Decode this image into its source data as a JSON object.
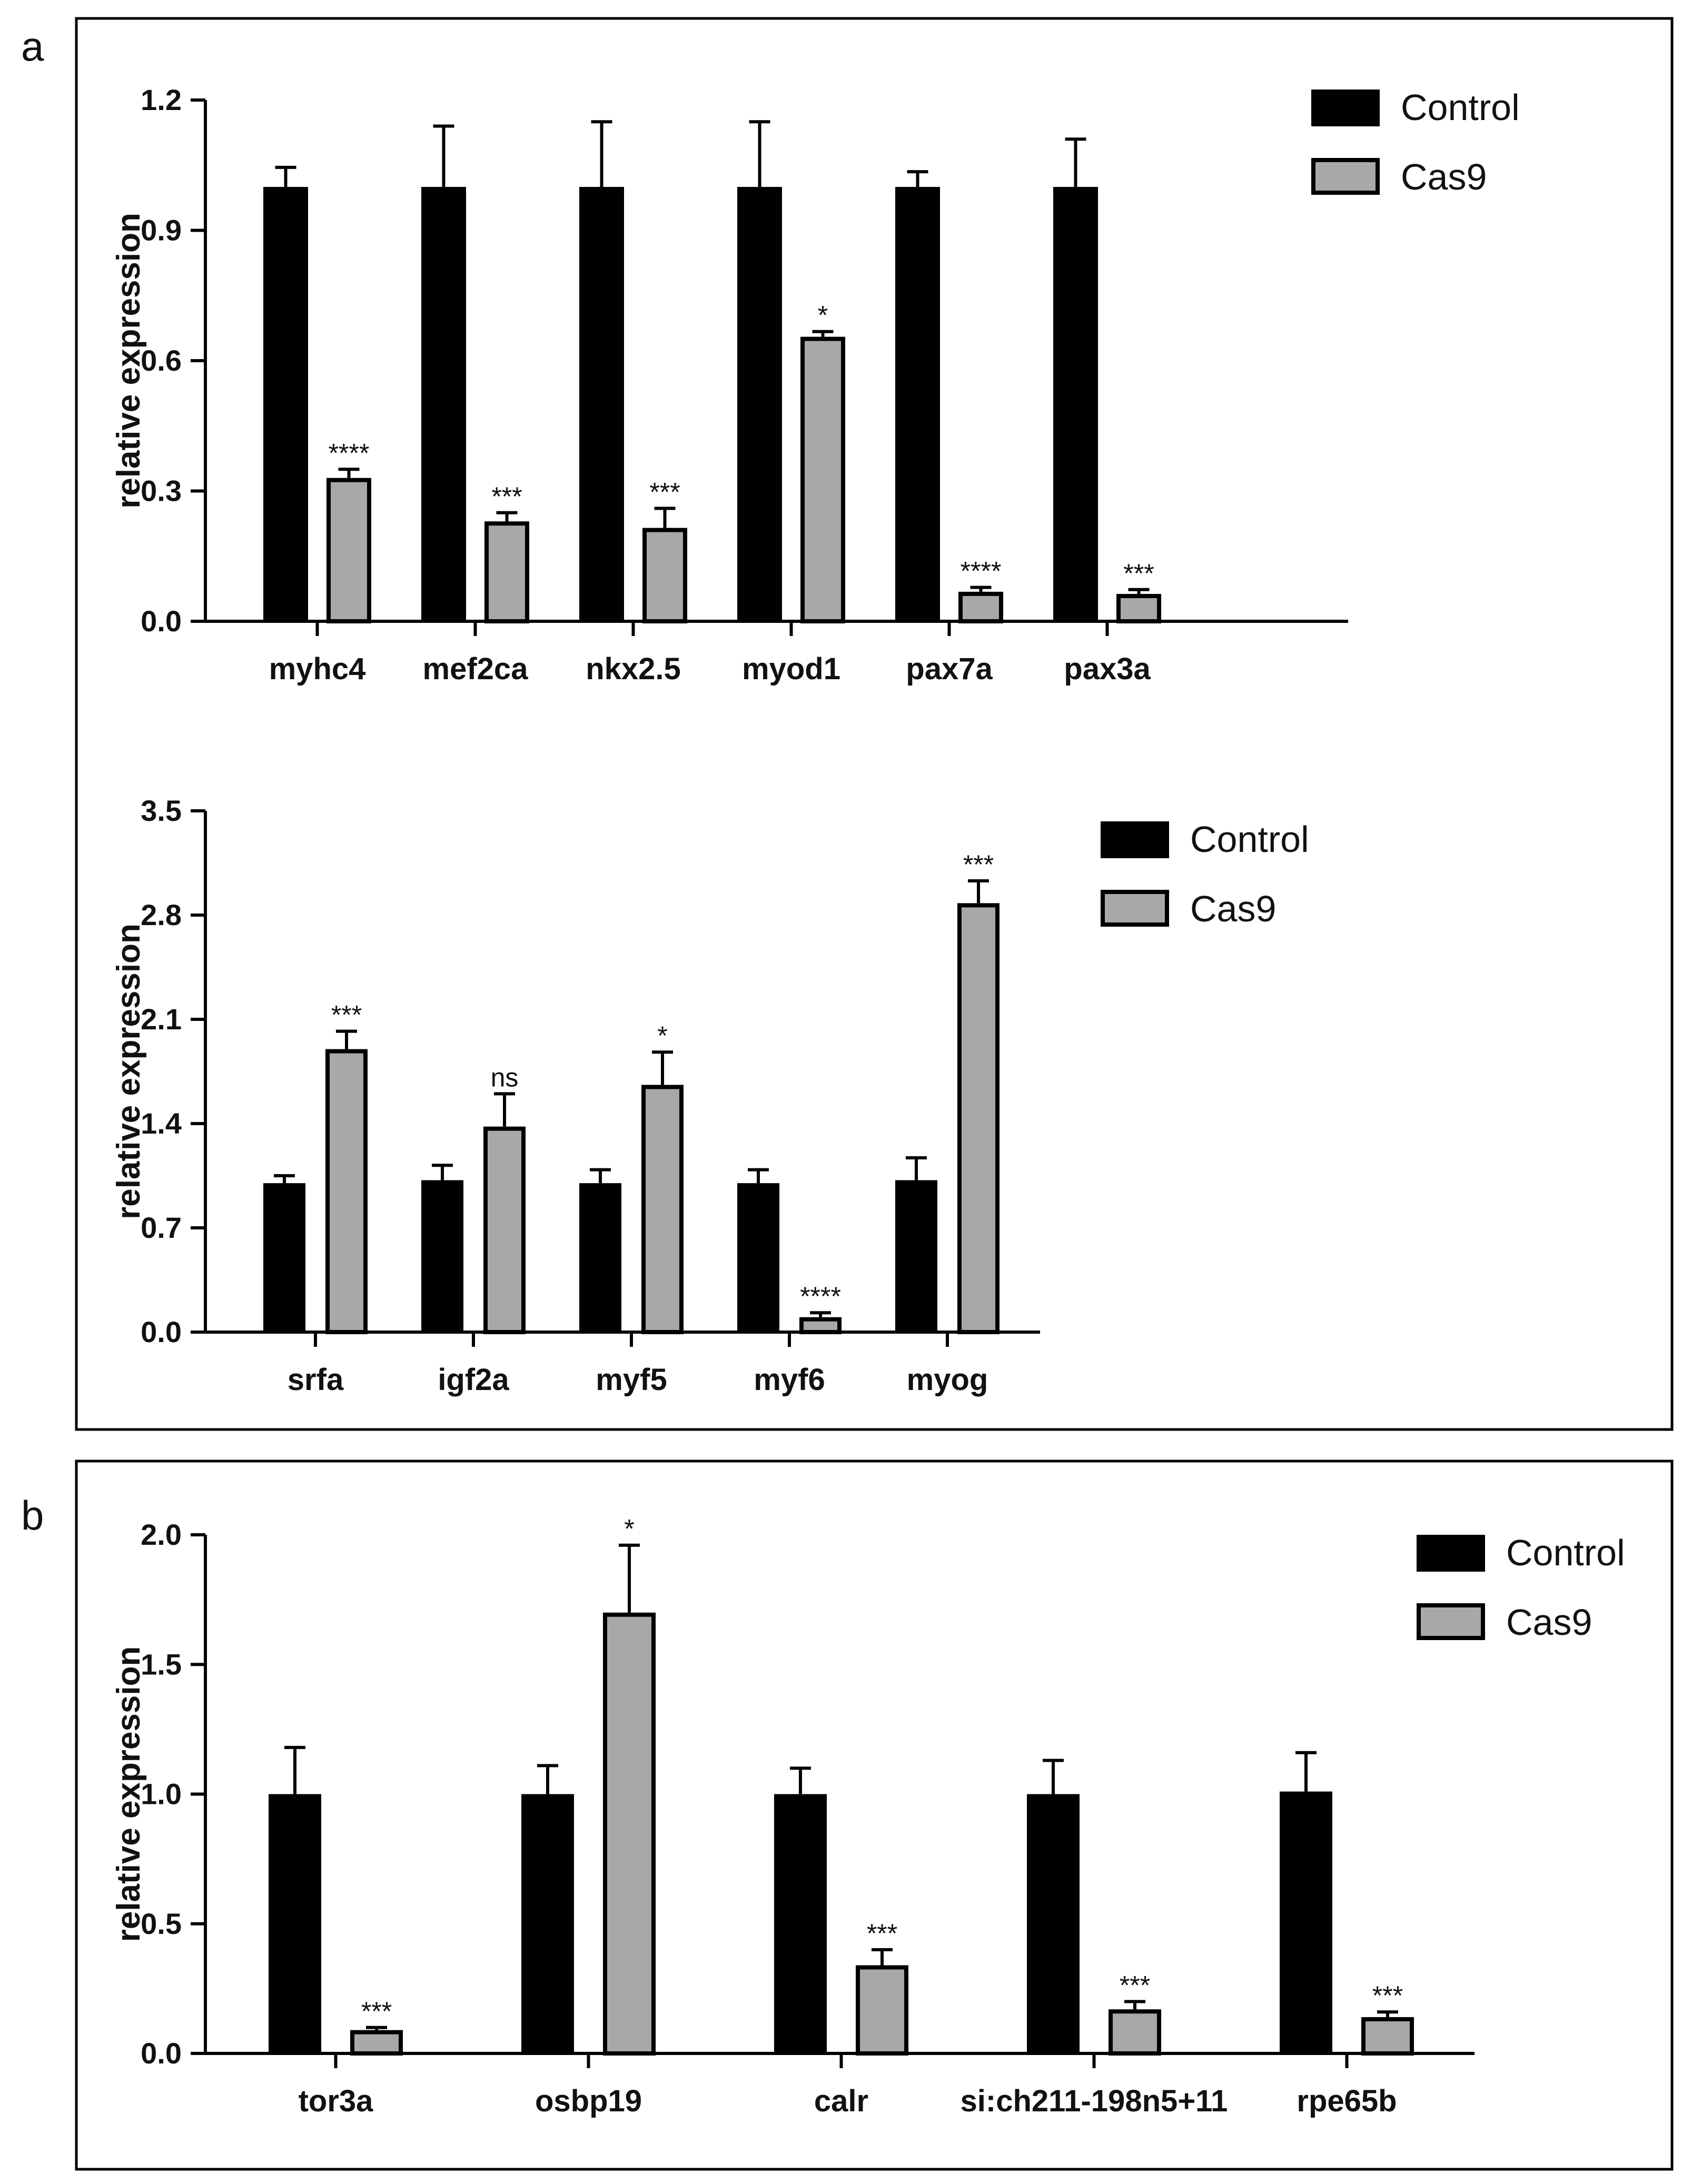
{
  "colors": {
    "control": "#000000",
    "cas9": "#a8a8a8",
    "axis": "#000000"
  },
  "panels": [
    {
      "letter": "a"
    },
    {
      "letter": "b"
    }
  ],
  "chart_data": [
    {
      "type": "bar",
      "panel": "a",
      "title": "",
      "ylabel": "relative expression",
      "xlabel": "",
      "ylim": [
        0,
        1.2
      ],
      "yticks": [
        "0.0",
        "0.3",
        "0.6",
        "0.9",
        "1.2"
      ],
      "categories": [
        "myhc4",
        "mef2ca",
        "nkx2.5",
        "myod1",
        "pax7a",
        "pax3a"
      ],
      "series": [
        {
          "name": "Control",
          "values": [
            1.0,
            1.0,
            1.0,
            1.0,
            1.0,
            1.0
          ],
          "errors": [
            0.045,
            0.14,
            0.15,
            0.15,
            0.035,
            0.11
          ]
        },
        {
          "name": "Cas9",
          "values": [
            0.33,
            0.23,
            0.215,
            0.655,
            0.068,
            0.063
          ],
          "errors": [
            0.02,
            0.02,
            0.045,
            0.012,
            0.01,
            0.01
          ]
        }
      ],
      "significance": [
        "****",
        "***",
        "***",
        "*",
        "****",
        "***"
      ],
      "legend": [
        "Control",
        "Cas9"
      ]
    },
    {
      "type": "bar",
      "panel": "a",
      "title": "",
      "ylabel": "relative expression",
      "xlabel": "",
      "ylim": [
        0,
        3.5
      ],
      "yticks": [
        "0.0",
        "0.7",
        "1.4",
        "2.1",
        "2.8",
        "3.5"
      ],
      "categories": [
        "srfa",
        "igf2a",
        "myf5",
        "myf6",
        "myog"
      ],
      "series": [
        {
          "name": "Control",
          "values": [
            1.0,
            1.02,
            1.0,
            1.0,
            1.02
          ],
          "errors": [
            0.05,
            0.1,
            0.09,
            0.09,
            0.15
          ]
        },
        {
          "name": "Cas9",
          "values": [
            1.9,
            1.38,
            1.66,
            0.1,
            2.88
          ],
          "errors": [
            0.12,
            0.22,
            0.22,
            0.03,
            0.15
          ]
        }
      ],
      "significance": [
        "***",
        "ns",
        "*",
        "****",
        "***"
      ],
      "legend": [
        "Control",
        "Cas9"
      ]
    },
    {
      "type": "bar",
      "panel": "b",
      "title": "",
      "ylabel": "relative expression",
      "xlabel": "",
      "ylim": [
        0,
        2.0
      ],
      "yticks": [
        "0.0",
        "0.5",
        "1.0",
        "1.5",
        "2.0"
      ],
      "categories": [
        "tor3a",
        "osbp19",
        "calr",
        "si:ch211-198n5+11",
        "rpe65b"
      ],
      "series": [
        {
          "name": "Control",
          "values": [
            1.0,
            1.0,
            1.0,
            1.0,
            1.01
          ],
          "errors": [
            0.18,
            0.11,
            0.1,
            0.13,
            0.15
          ]
        },
        {
          "name": "Cas9",
          "values": [
            0.09,
            1.7,
            0.34,
            0.17,
            0.14
          ],
          "errors": [
            0.01,
            0.26,
            0.06,
            0.03,
            0.02
          ]
        }
      ],
      "significance": [
        "***",
        "*",
        "***",
        "***",
        "***"
      ],
      "legend": [
        "Control",
        "Cas9"
      ]
    }
  ]
}
